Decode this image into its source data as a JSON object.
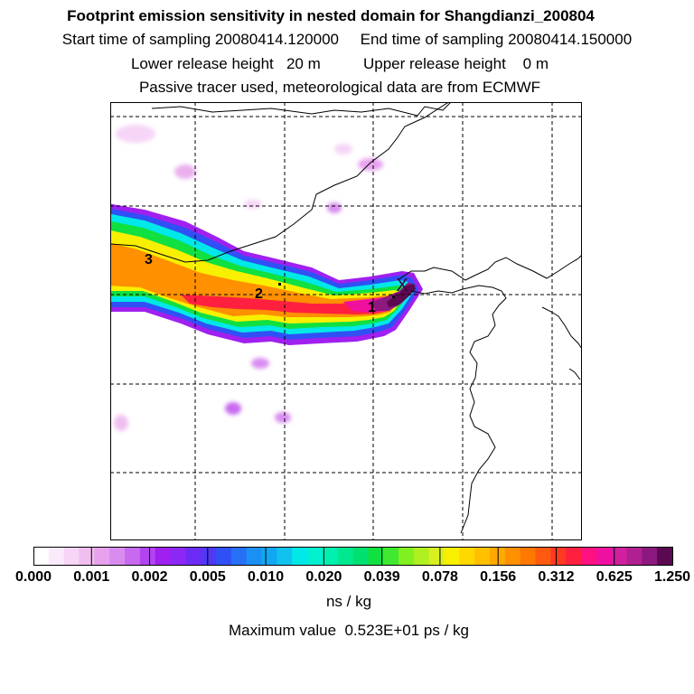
{
  "titles": {
    "line1": "Footprint emission sensitivity in nested domain for Shangdianzi_200804",
    "line2": "Start time of sampling 20080414.120000     End time of sampling 20080414.150000",
    "line3": "Lower release height   20 m          Upper release height    0 m",
    "line4": "Passive tracer used, meteorological data are from ECMWF"
  },
  "chart_data": {
    "type": "heatmap",
    "title": "Footprint emission sensitivity in nested domain for Shangdianzi_200804",
    "colorbar": {
      "tick_labels": [
        "0.000",
        "0.001",
        "0.002",
        "0.005",
        "0.010",
        "0.020",
        "0.039",
        "0.078",
        "0.156",
        "0.312",
        "0.625",
        "1.250"
      ],
      "colors": [
        "#ffffff",
        "#fbeafb",
        "#f6d5f6",
        "#f0bff0",
        "#e7a2ee",
        "#d98cf0",
        "#c86af0",
        "#b244f0",
        "#a020f0",
        "#8c28f5",
        "#6e2af5",
        "#5038f5",
        "#3050f5",
        "#2670f5",
        "#1a90f5",
        "#10a8f2",
        "#12c2ee",
        "#00e8e8",
        "#00f0d0",
        "#00f0b0",
        "#00e890",
        "#00e070",
        "#10e040",
        "#40e830",
        "#80f020",
        "#b0f020",
        "#d8f020",
        "#f8f000",
        "#ffd800",
        "#ffc000",
        "#ffa800",
        "#ff9000",
        "#ff7800",
        "#ff5a10",
        "#ff3a20",
        "#ff2040",
        "#ff1080",
        "#f010a0",
        "#d020a0",
        "#b02090",
        "#8c1880",
        "#5a0850"
      ],
      "units": "ns / kg"
    },
    "max_value_text": "Maximum value  0.523E+01 ps / kg",
    "plume_labels": [
      "1",
      "2",
      "3"
    ],
    "release_marker": "X",
    "grid": true
  }
}
